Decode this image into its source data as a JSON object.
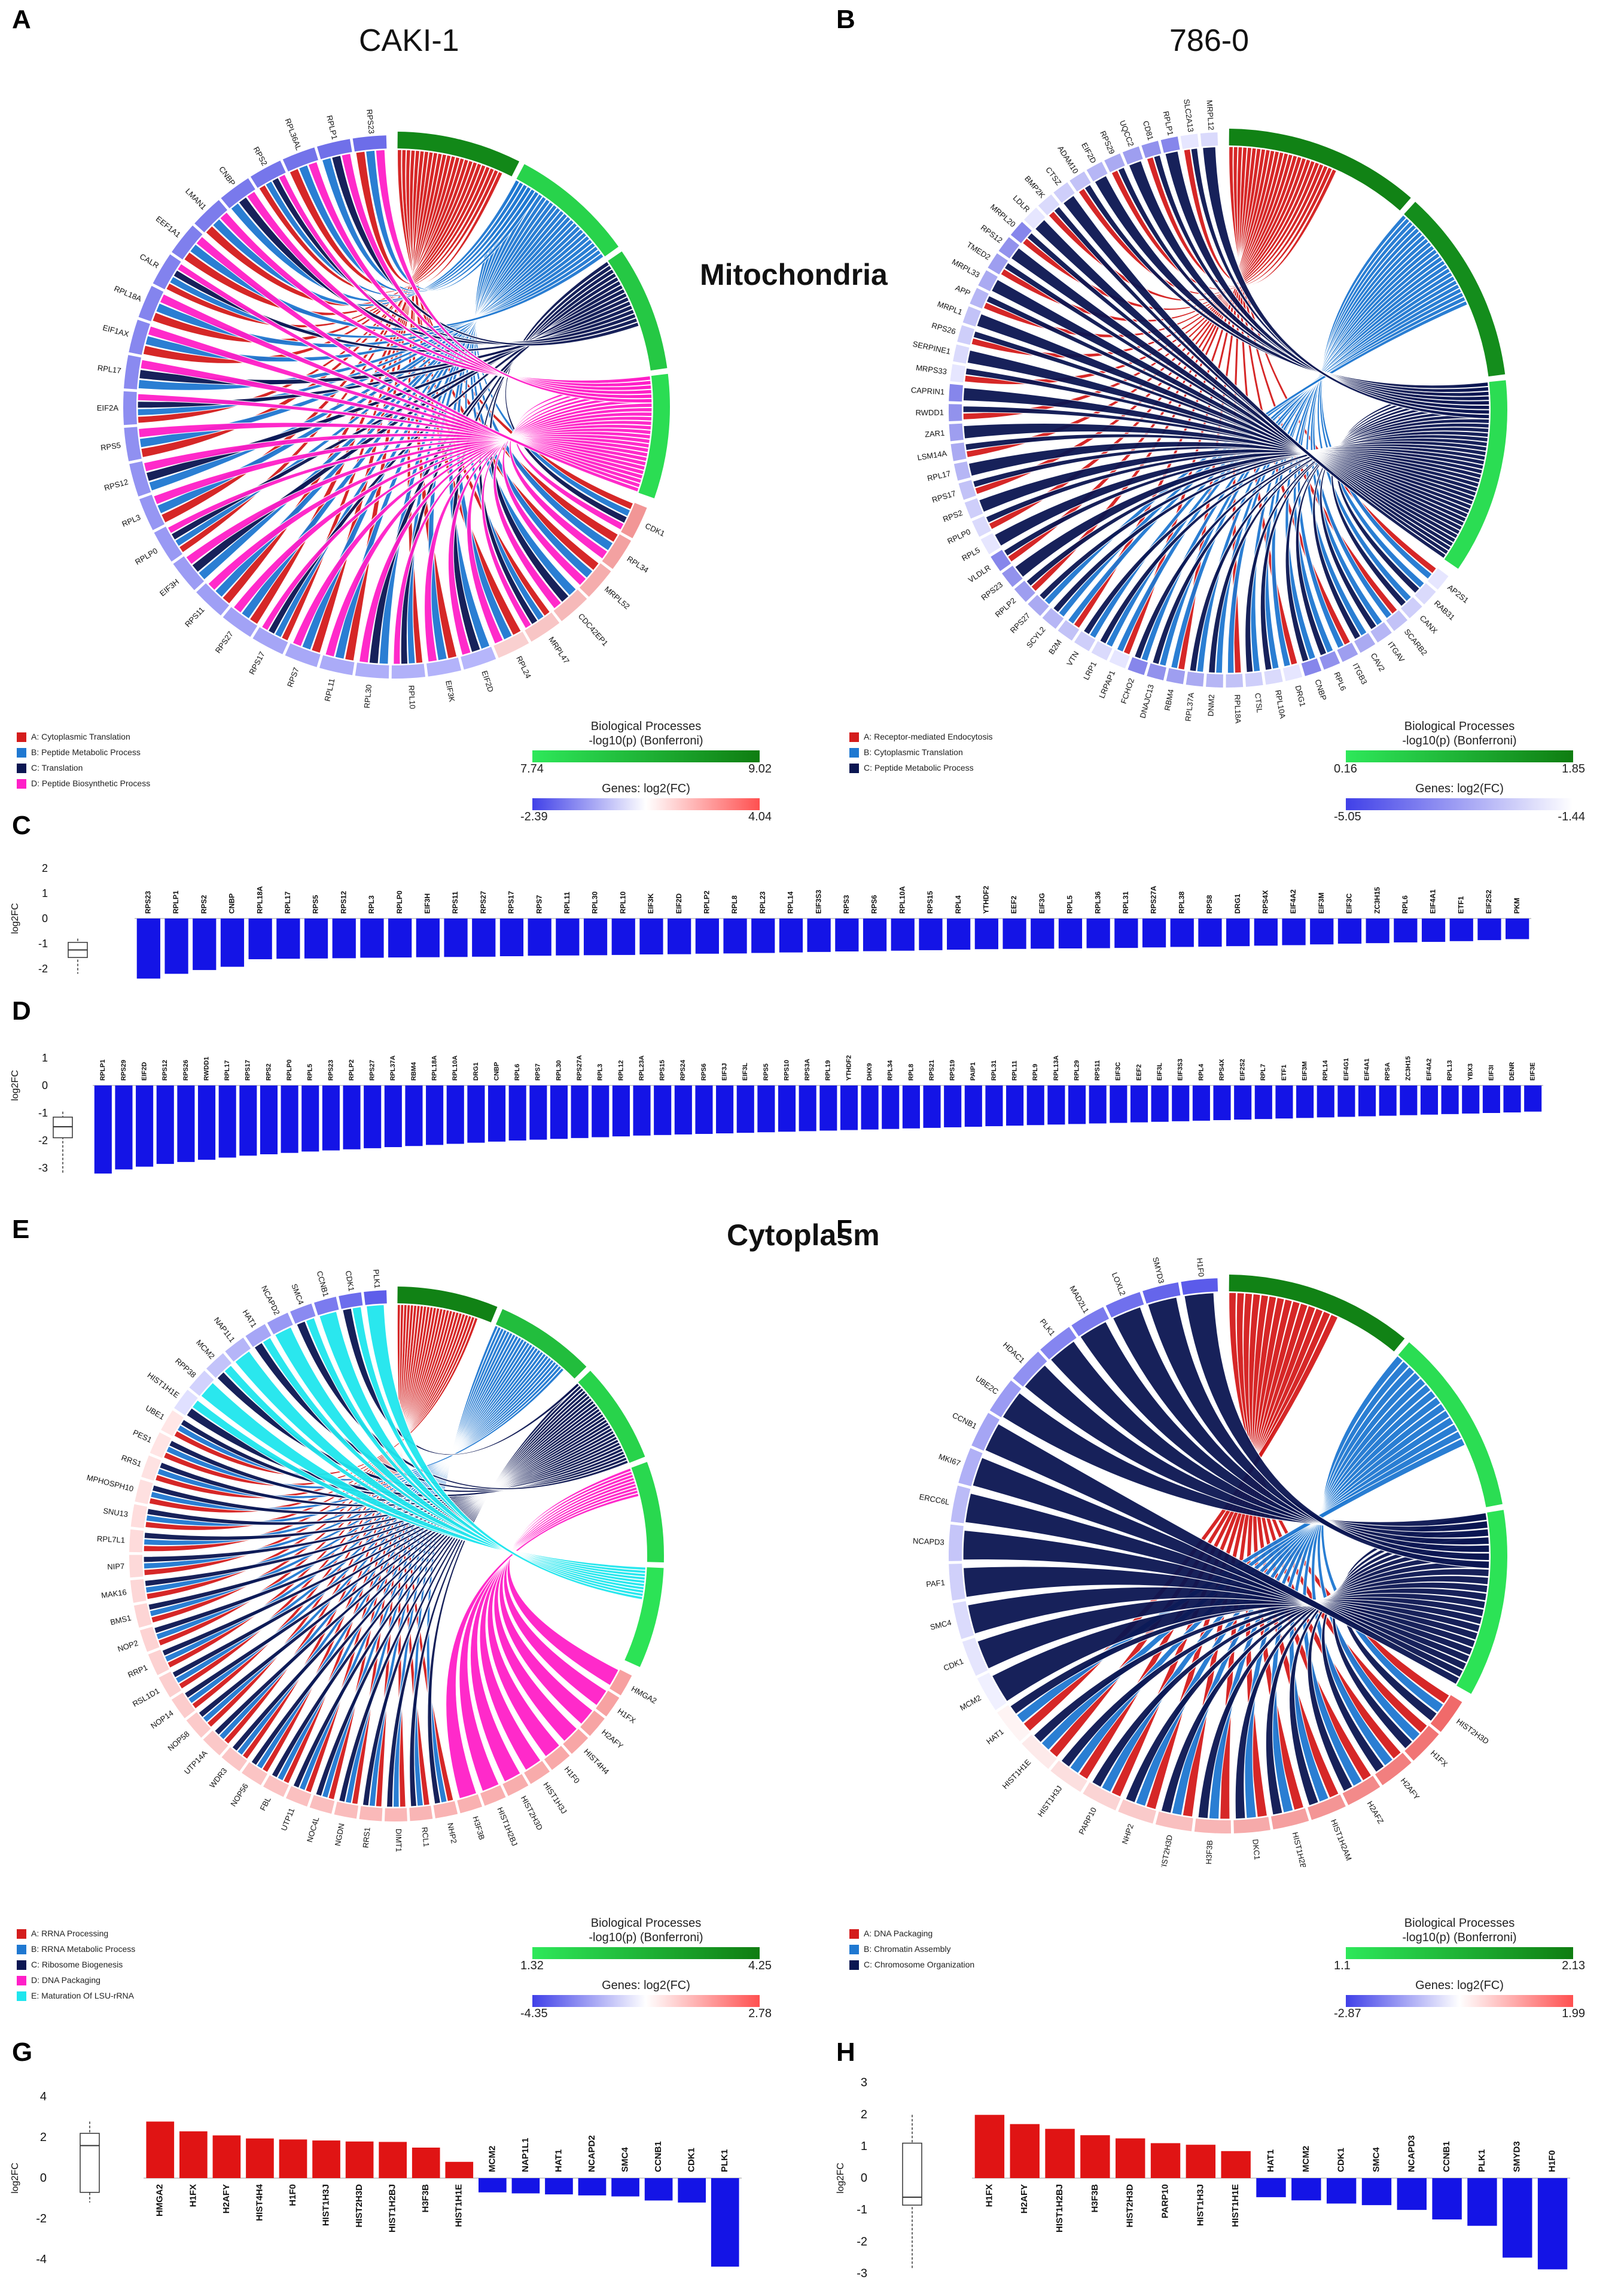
{
  "panels": {
    "A": "A",
    "B": "B",
    "C": "C",
    "D": "D",
    "E": "E",
    "F": "F",
    "G": "G",
    "H": "H"
  },
  "titles": {
    "caki": "CAKI-1",
    "c786": "786-0",
    "mito": "Mitochondria",
    "cyto": "Cytoplasm"
  },
  "scale_common": {
    "bp_title": "Biological Processes",
    "bp_sub": "-log10(p) (Bonferroni)",
    "genes_title": "Genes: log2(FC)"
  },
  "colors": {
    "red": "#d41c1c",
    "mid_blue": "#1f78d1",
    "navy": "#0b1652",
    "magenta": "#ff1fc8",
    "cyan": "#1fe6ee",
    "green_dark": "#0f7d11",
    "green_light": "#2ee85a",
    "bar_blue": "#1414e6",
    "bar_red": "#e01414"
  },
  "chart_data": [
    {
      "id": "A",
      "type": "chord",
      "title": "CAKI-1",
      "legend": [
        "A: Cytoplasmic Translation",
        "B: Peptide Metabolic Process",
        "C: Translation",
        "D: Peptide Biosynthetic Process"
      ],
      "process_scale": [
        7.74,
        9.02
      ],
      "gene_scale": [
        -2.39,
        4.04
      ],
      "segments": [
        "A",
        "B",
        "C",
        "D"
      ],
      "genes": [
        "CDK1",
        "RPL34",
        "MRPL52",
        "CDC42EP1",
        "MRPL47",
        "RPL24",
        "EIF2D",
        "EIF3K",
        "RPL10",
        "RPL30",
        "RPL11",
        "RPS7",
        "RPS17",
        "RPS27",
        "RPS11",
        "EIF3H",
        "RPLP0",
        "RPL3",
        "RPS12",
        "RPS5",
        "EIF2A",
        "RPL17",
        "EIF1AX",
        "RPL18A",
        "CALR",
        "EEF1A1",
        "LMAN1",
        "CNBP",
        "RPS2",
        "RPL36AL",
        "RPLP1",
        "RPS23"
      ]
    },
    {
      "id": "B",
      "type": "chord",
      "title": "786-0",
      "legend": [
        "A: Receptor-mediated Endocytosis",
        "B: Cytoplasmic Translation",
        "C: Peptide Metabolic Process"
      ],
      "process_scale": [
        0.16,
        1.85
      ],
      "gene_scale": [
        -5.05,
        -1.44
      ],
      "segments": [
        "A",
        "B",
        "C"
      ],
      "genes": [
        "AP2S1",
        "RAB31",
        "CANX",
        "SCARB2",
        "ITGAV",
        "CAV2",
        "ITGB3",
        "RPL6",
        "CNBP",
        "DRG1",
        "RPL10A",
        "CTSL",
        "RPL18A",
        "DNM2",
        "RPL37A",
        "RBM4",
        "DNAJC13",
        "FCHO2",
        "LRPAP1",
        "LRP1",
        "VTN",
        "B2M",
        "SCYL2",
        "RPS27",
        "RPLP2",
        "RPS23",
        "VLDLR",
        "RPL5",
        "RPLP0",
        "RPS2",
        "RPS17",
        "RPL17",
        "LSM14A",
        "ZAR1",
        "RWDD1",
        "CAPRIN1",
        "MRPS33",
        "SERPINE1",
        "RPS26",
        "MRPL1",
        "APP",
        "MRPL33",
        "TMED2",
        "RPS12",
        "MRPL20",
        "LDLR",
        "BMP2K",
        "CTSZ",
        "ADAM10",
        "EIF2D",
        "RPS29",
        "UQCC2",
        "CD81",
        "RPLP1",
        "SLC2A13",
        "MRPL12"
      ]
    },
    {
      "id": "C",
      "type": "bar",
      "ylabel": "log2FC",
      "yticks": [
        2,
        1,
        0,
        -1,
        -2
      ],
      "ylim": [
        -2.5,
        2.5
      ],
      "categories": [
        "RPS23",
        "RPLP1",
        "RPS2",
        "CNBP",
        "RPL18A",
        "RPL17",
        "RPS5",
        "RPS12",
        "RPL3",
        "RPLP0",
        "EIF3H",
        "RPS11",
        "RPS27",
        "RPS17",
        "RPS7",
        "RPL11",
        "RPL30",
        "RPL10",
        "EIF3K",
        "EIF2D",
        "RPLP2",
        "RPL8",
        "RPL23",
        "RPL14",
        "EIF3S3",
        "RPS3",
        "RPS6",
        "RPL10A",
        "RPS15",
        "RPL4",
        "YTHDF2",
        "EEF2",
        "EIF3G",
        "RPL5",
        "RPL36",
        "RPL31",
        "RPS27A",
        "RPL38",
        "RPS8",
        "DRG1",
        "RPS4X",
        "EIF4A2",
        "EIF3M",
        "EIF3C",
        "ZC3H15",
        "RPL6",
        "EIF4A1",
        "ETF1",
        "EIF2S2",
        "PKM"
      ],
      "values": [
        -2.39,
        -2.2,
        -2.05,
        -1.92,
        -1.62,
        -1.6,
        -1.59,
        -1.58,
        -1.56,
        -1.55,
        -1.54,
        -1.53,
        -1.52,
        -1.5,
        -1.48,
        -1.47,
        -1.46,
        -1.45,
        -1.43,
        -1.42,
        -1.4,
        -1.39,
        -1.37,
        -1.35,
        -1.33,
        -1.31,
        -1.3,
        -1.28,
        -1.26,
        -1.24,
        -1.22,
        -1.21,
        -1.2,
        -1.19,
        -1.18,
        -1.17,
        -1.15,
        -1.13,
        -1.12,
        -1.1,
        -1.08,
        -1.06,
        -1.03,
        -1.0,
        -0.98,
        -0.95,
        -0.93,
        -0.9,
        -0.86,
        -0.82
      ]
    },
    {
      "id": "D",
      "type": "bar",
      "ylabel": "log2FC",
      "yticks": [
        1,
        0,
        -1,
        -2,
        -3
      ],
      "ylim": [
        -3.5,
        1.5
      ],
      "categories": [
        "RPLP1",
        "RPS29",
        "EIF2D",
        "RPS12",
        "RPS26",
        "RWDD1",
        "RPL17",
        "RPS17",
        "RPS2",
        "RPLP0",
        "RPL5",
        "RPS23",
        "RPLP2",
        "RPS27",
        "RPL37A",
        "RBM4",
        "RPL18A",
        "RPL10A",
        "DRG1",
        "CNBP",
        "RPL6",
        "RPS7",
        "RPL30",
        "RPS27A",
        "RPL3",
        "RPL12",
        "RPL23A",
        "RPS15",
        "RPS24",
        "RPS6",
        "EIF3J",
        "EIF3L",
        "RPS5",
        "RPS10",
        "RPS3A",
        "RPL19",
        "YTHDF2",
        "DHX9",
        "RPL34",
        "RPL8",
        "RPS21",
        "RPS19",
        "PAIP1",
        "RPL31",
        "RPL11",
        "RPL9",
        "RPL13A",
        "RPL29",
        "RPS11",
        "EIF3C",
        "EEF2",
        "EIF3L",
        "EIF3S3",
        "RPL4",
        "RPS4X",
        "EIF2S2",
        "RPL7",
        "ETF1",
        "EIF3M",
        "RPL14",
        "EIF4G1",
        "EIF4A1",
        "RPSA",
        "ZC3H15",
        "EIF4A2",
        "RPL13",
        "YBX3",
        "EIF3I",
        "DENR",
        "EIF3E"
      ],
      "values": [
        -3.2,
        -3.05,
        -2.95,
        -2.85,
        -2.78,
        -2.7,
        -2.62,
        -2.55,
        -2.5,
        -2.45,
        -2.4,
        -2.36,
        -2.32,
        -2.28,
        -2.24,
        -2.2,
        -2.16,
        -2.12,
        -2.08,
        -2.04,
        -2.0,
        -1.97,
        -1.94,
        -1.91,
        -1.88,
        -1.85,
        -1.82,
        -1.8,
        -1.78,
        -1.76,
        -1.74,
        -1.72,
        -1.7,
        -1.68,
        -1.66,
        -1.64,
        -1.62,
        -1.6,
        -1.58,
        -1.56,
        -1.54,
        -1.52,
        -1.5,
        -1.48,
        -1.46,
        -1.44,
        -1.42,
        -1.4,
        -1.38,
        -1.36,
        -1.34,
        -1.32,
        -1.3,
        -1.28,
        -1.26,
        -1.24,
        -1.22,
        -1.2,
        -1.18,
        -1.16,
        -1.14,
        -1.12,
        -1.1,
        -1.08,
        -1.06,
        -1.04,
        -1.02,
        -1.0,
        -0.98,
        -0.95
      ]
    },
    {
      "id": "E",
      "type": "chord",
      "legend": [
        "A: RRNA Processing",
        "B: RRNA Metabolic Process",
        "C: Ribosome Biogenesis",
        "D: DNA Packaging",
        "E: Maturation Of LSU-rRNA"
      ],
      "process_scale": [
        1.32,
        4.25
      ],
      "gene_scale": [
        -4.35,
        2.78
      ],
      "segments": [
        "A",
        "B",
        "C",
        "D",
        "E"
      ],
      "genes": [
        "HMGA2",
        "H1FX",
        "H2AFY",
        "HIST4H4",
        "H1F0",
        "HIST1H3J",
        "HIST2H3D",
        "HIST1H2BJ",
        "H3F3B",
        "NHP2",
        "RCL1",
        "DIMT1",
        "RRS1",
        "NGDN",
        "NOC4L",
        "UTP11",
        "FBL",
        "NOP56",
        "WDR3",
        "UTP14A",
        "NOP58",
        "NOP14",
        "RSL1D1",
        "RRP1",
        "NOP2",
        "BMS1",
        "MAK16",
        "NIP7",
        "RPL7L1",
        "SNU13",
        "MPHOSPH10",
        "RRS1",
        "PES1",
        "UBE1",
        "HIST1H1E",
        "RPP38",
        "MCM2",
        "NAP1L1",
        "HAT1",
        "NCAPD2",
        "SMC4",
        "CCNB1",
        "CDK1",
        "PLK1"
      ]
    },
    {
      "id": "F",
      "type": "chord",
      "legend": [
        "A: DNA Packaging",
        "B: Chromatin Assembly",
        "C: Chromosome Organization"
      ],
      "process_scale": [
        1.1,
        2.13
      ],
      "gene_scale": [
        -2.87,
        1.99
      ],
      "segments": [
        "A",
        "B",
        "C"
      ],
      "genes": [
        "HIST2H3D",
        "H1FX",
        "H2AFY",
        "H2AFZ",
        "HIST1H2AM",
        "HIST1H2BJ",
        "DKC1",
        "H3F3B",
        "HIST2H3D",
        "NHP2",
        "PARP10",
        "HIST1H3J",
        "HIST1H1E",
        "HAT1",
        "MCM2",
        "CDK1",
        "SMC4",
        "PAF1",
        "NCAPD3",
        "ERCC6L",
        "MKI67",
        "CCNB1",
        "UBE2C",
        "HDAC1",
        "PLK1",
        "MAD2L1",
        "LOXL2",
        "SMYD3",
        "H1F0"
      ]
    },
    {
      "id": "G",
      "type": "bar",
      "ylabel": "log2FC",
      "yticks": [
        4,
        2,
        0,
        -2,
        -4
      ],
      "ylim": [
        -5,
        5
      ],
      "categories": [
        "HMGA2",
        "H1FX",
        "H2AFY",
        "HIST4H4",
        "H1F0",
        "HIST1H3J",
        "HIST2H3D",
        "HIST1H2BJ",
        "H3F3B",
        "HIST1H1E",
        "MCM2",
        "NAP1L1",
        "HAT1",
        "NCAPD2",
        "SMC4",
        "CCNB1",
        "CDK1",
        "PLK1"
      ],
      "values": [
        2.78,
        2.3,
        2.1,
        1.95,
        1.9,
        1.85,
        1.8,
        1.78,
        1.5,
        0.8,
        -0.7,
        -0.75,
        -0.8,
        -0.85,
        -0.9,
        -1.1,
        -1.2,
        -4.35
      ]
    },
    {
      "id": "H",
      "type": "bar",
      "ylabel": "log2FC",
      "yticks": [
        3,
        2,
        1,
        0,
        -1,
        -2,
        -3
      ],
      "ylim": [
        -3.2,
        3.2
      ],
      "categories": [
        "H1FX",
        "H2AFY",
        "HIST1H2BJ",
        "H3F3B",
        "HIST2H3D",
        "PARP10",
        "HIST1H3J",
        "HIST1H1E",
        "HAT1",
        "MCM2",
        "CDK1",
        "SMC4",
        "NCAPD3",
        "CCNB1",
        "PLK1",
        "SMYD3",
        "H1F0"
      ],
      "values": [
        1.99,
        1.7,
        1.55,
        1.35,
        1.25,
        1.1,
        1.05,
        0.85,
        -0.6,
        -0.7,
        -0.8,
        -0.85,
        -1.0,
        -1.3,
        -1.5,
        -2.5,
        -2.87
      ]
    }
  ]
}
